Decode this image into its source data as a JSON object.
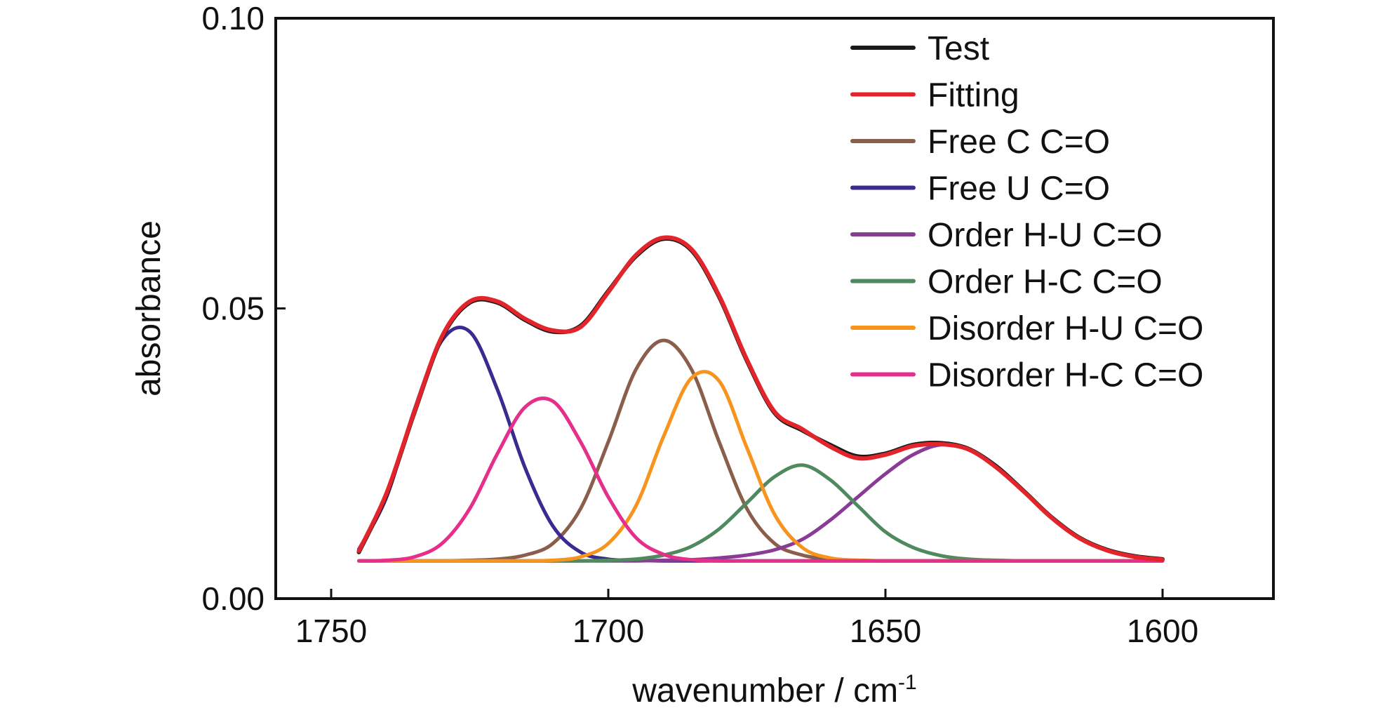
{
  "chart_data": {
    "type": "line",
    "xlabel": "wavenumber / cm",
    "xlabel_superscript": "-1",
    "ylabel": "absorbance",
    "xlim": [
      1760,
      1580
    ],
    "ylim": [
      0.0,
      0.1
    ],
    "x_reversed": true,
    "x_ticks": [
      1750,
      1700,
      1650,
      1600
    ],
    "x_tick_labels": [
      "1750",
      "1700",
      "1650",
      "1600"
    ],
    "y_ticks": [
      0.0,
      0.05,
      0.1
    ],
    "y_tick_labels": [
      "0.00",
      "0.05",
      "0.10"
    ],
    "grid": false,
    "legend_position": "top-right",
    "x": [
      1745,
      1740,
      1735,
      1730,
      1725,
      1720,
      1715,
      1710,
      1705,
      1700,
      1695,
      1690,
      1685,
      1680,
      1675,
      1670,
      1665,
      1660,
      1655,
      1650,
      1645,
      1640,
      1635,
      1630,
      1625,
      1620,
      1615,
      1610,
      1605,
      1600
    ],
    "series": [
      {
        "name": "Test",
        "color": "#1a1a1a",
        "values": [
          0.008,
          0.018,
          0.032,
          0.045,
          0.051,
          0.051,
          0.048,
          0.046,
          0.047,
          0.053,
          0.059,
          0.062,
          0.06,
          0.052,
          0.041,
          0.032,
          0.029,
          0.0265,
          0.0245,
          0.025,
          0.0265,
          0.0268,
          0.0258,
          0.0228,
          0.0185,
          0.014,
          0.0105,
          0.0084,
          0.0073,
          0.0068
        ]
      },
      {
        "name": "Fitting",
        "color": "#e3242b",
        "values": [
          0.0082,
          0.0182,
          0.0322,
          0.0452,
          0.0512,
          0.0512,
          0.0482,
          0.0462,
          0.0468,
          0.0528,
          0.0592,
          0.0622,
          0.0602,
          0.0522,
          0.0412,
          0.0322,
          0.0292,
          0.0262,
          0.0242,
          0.0248,
          0.0263,
          0.0266,
          0.0257,
          0.0226,
          0.0184,
          0.0139,
          0.0104,
          0.0083,
          0.0072,
          0.0067
        ]
      },
      {
        "name": "Free C C=O",
        "color": "#8b5e4b",
        "values": [
          0.0065,
          0.0065,
          0.0065,
          0.0065,
          0.0066,
          0.0068,
          0.0075,
          0.0095,
          0.0155,
          0.027,
          0.0395,
          0.0445,
          0.0395,
          0.027,
          0.0155,
          0.0095,
          0.0075,
          0.0068,
          0.0066,
          0.0065,
          0.0065,
          0.0065,
          0.0065,
          0.0065,
          0.0065,
          0.0065,
          0.0065,
          0.0065,
          0.0065,
          0.0065
        ]
      },
      {
        "name": "Free U C=O",
        "color": "#3b2a8f",
        "values": [
          0.0085,
          0.0175,
          0.0325,
          0.0445,
          0.046,
          0.036,
          0.0225,
          0.0125,
          0.008,
          0.0068,
          0.0066,
          0.0065,
          0.0065,
          0.0065,
          0.0065,
          0.0065,
          0.0065,
          0.0065,
          0.0065,
          0.0065,
          0.0065,
          0.0065,
          0.0065,
          0.0065,
          0.0065,
          0.0065,
          0.0065,
          0.0065,
          0.0065,
          0.0065
        ]
      },
      {
        "name": "Order H-U C=O",
        "color": "#8a3b96",
        "values": [
          0.0065,
          0.0065,
          0.0065,
          0.0065,
          0.0065,
          0.0065,
          0.0065,
          0.0065,
          0.0065,
          0.0065,
          0.0065,
          0.0066,
          0.0067,
          0.007,
          0.0075,
          0.0084,
          0.0102,
          0.0135,
          0.0175,
          0.0215,
          0.0248,
          0.0265,
          0.0257,
          0.0227,
          0.0184,
          0.0139,
          0.0104,
          0.0083,
          0.0072,
          0.0067
        ]
      },
      {
        "name": "Order H-C C=O",
        "color": "#4f8a5e",
        "values": [
          0.0065,
          0.0065,
          0.0065,
          0.0065,
          0.0065,
          0.0065,
          0.0065,
          0.0065,
          0.0065,
          0.0066,
          0.0068,
          0.0075,
          0.009,
          0.012,
          0.0165,
          0.021,
          0.023,
          0.0205,
          0.016,
          0.0115,
          0.0088,
          0.0074,
          0.0068,
          0.0066,
          0.0065,
          0.0065,
          0.0065,
          0.0065,
          0.0065,
          0.0065
        ]
      },
      {
        "name": "Disorder H-U C=O",
        "color": "#f7941d",
        "values": [
          0.0065,
          0.0065,
          0.0065,
          0.0065,
          0.0065,
          0.0065,
          0.0065,
          0.0066,
          0.0072,
          0.0095,
          0.016,
          0.028,
          0.038,
          0.0375,
          0.026,
          0.0145,
          0.0088,
          0.007,
          0.0066,
          0.0065,
          0.0065,
          0.0065,
          0.0065,
          0.0065,
          0.0065,
          0.0065,
          0.0065,
          0.0065,
          0.0065,
          0.0065
        ]
      },
      {
        "name": "Disorder H-C C=O",
        "color": "#e62e8b",
        "values": [
          0.0065,
          0.0066,
          0.0072,
          0.0095,
          0.0155,
          0.025,
          0.033,
          0.034,
          0.027,
          0.0175,
          0.0105,
          0.0076,
          0.0067,
          0.0065,
          0.0065,
          0.0065,
          0.0065,
          0.0065,
          0.0065,
          0.0065,
          0.0065,
          0.0065,
          0.0065,
          0.0065,
          0.0065,
          0.0065,
          0.0065,
          0.0065,
          0.0065,
          0.0065
        ]
      }
    ]
  }
}
